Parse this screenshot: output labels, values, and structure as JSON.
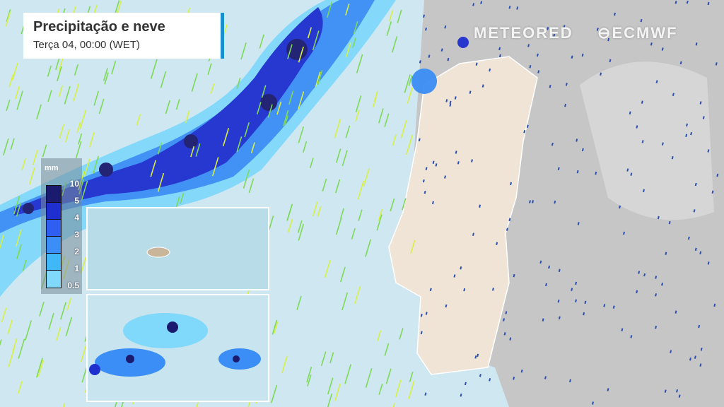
{
  "header": {
    "title": "Precipitação e neve",
    "subtitle": "Terça 04, 00:00 (WET)"
  },
  "legend": {
    "unit": "mm",
    "levels": [
      {
        "label": "10",
        "color": "#1a1a6e"
      },
      {
        "label": "5",
        "color": "#1f2fcf"
      },
      {
        "label": "4",
        "color": "#2f5ef0"
      },
      {
        "label": "3",
        "color": "#3a8ef5"
      },
      {
        "label": "2",
        "color": "#40b8f8"
      },
      {
        "label": "1",
        "color": "#80d8fb"
      }
    ],
    "min_label": "0.5"
  },
  "logos": {
    "meteored": "METEORED",
    "ecmwf": "ECMWF"
  },
  "colors": {
    "sea": "#cfe7f1",
    "land": "#c9c9c9",
    "portugal": "#efe4d6",
    "wind_sea": "#7ed957",
    "wind_land": "#2a4fb0"
  }
}
